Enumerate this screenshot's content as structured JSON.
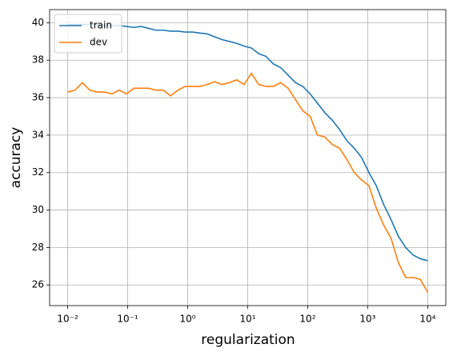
{
  "chart_data": {
    "type": "line",
    "xlabel": "regularization",
    "ylabel": "accuracy",
    "xscale": "log",
    "grid": true,
    "legend": "upper left",
    "x": [
      0.01,
      0.01326,
      0.01758,
      0.0233,
      0.0309,
      0.04095,
      0.0543,
      0.072,
      0.0954,
      0.1265,
      0.1677,
      0.2223,
      0.2947,
      0.3907,
      0.5179,
      0.6866,
      0.9103,
      1.207,
      1.6,
      2.121,
      2.812,
      3.728,
      4.942,
      6.551,
      8.685,
      11.51,
      15.26,
      20.24,
      26.83,
      35.56,
      47.15,
      62.51,
      82.86,
      109.9,
      145.6,
      193.1,
      255.9,
      339.3,
      449.8,
      596.4,
      790.6,
      1048,
      1389,
      1842,
      2442,
      3237,
      4292,
      5690,
      7543,
      10000
    ],
    "series": [
      {
        "name": "train",
        "color": "#1f77b4",
        "values": [
          39.9,
          39.9,
          39.9,
          39.9,
          39.9,
          39.85,
          39.85,
          39.85,
          39.8,
          39.75,
          39.8,
          39.7,
          39.6,
          39.6,
          39.55,
          39.55,
          39.5,
          39.5,
          39.45,
          39.4,
          39.25,
          39.1,
          39.0,
          38.9,
          38.75,
          38.65,
          38.35,
          38.2,
          37.8,
          37.6,
          37.2,
          36.8,
          36.6,
          36.2,
          35.7,
          35.2,
          34.8,
          34.3,
          33.7,
          33.3,
          32.8,
          32.0,
          31.3,
          30.3,
          29.5,
          28.6,
          28.0,
          27.6,
          27.4,
          27.3
        ]
      },
      {
        "name": "dev",
        "color": "#ff7f0e",
        "values": [
          36.3,
          36.4,
          36.8,
          36.4,
          36.3,
          36.3,
          36.2,
          36.4,
          36.2,
          36.5,
          36.5,
          36.5,
          36.4,
          36.4,
          36.1,
          36.4,
          36.6,
          36.6,
          36.6,
          36.7,
          36.85,
          36.7,
          36.8,
          36.95,
          36.7,
          37.3,
          36.7,
          36.6,
          36.6,
          36.8,
          36.5,
          35.9,
          35.3,
          35.0,
          34.0,
          33.9,
          33.5,
          33.3,
          32.7,
          32.0,
          31.6,
          31.3,
          30.1,
          29.2,
          28.5,
          27.2,
          26.4,
          26.4,
          26.3,
          25.6
        ]
      }
    ],
    "xlim": [
      0.005,
      20000
    ],
    "xticks": [
      {
        "value": 0.01,
        "label": "10⁻²"
      },
      {
        "value": 0.1,
        "label": "10⁻¹"
      },
      {
        "value": 1,
        "label": "10⁰"
      },
      {
        "value": 10,
        "label": "10¹"
      },
      {
        "value": 100,
        "label": "10²"
      },
      {
        "value": 1000,
        "label": "10³"
      },
      {
        "value": 10000,
        "label": "10⁴"
      }
    ],
    "ylim": [
      24.9,
      40.7
    ],
    "yticks": [
      26,
      28,
      30,
      32,
      34,
      36,
      38,
      40
    ]
  }
}
